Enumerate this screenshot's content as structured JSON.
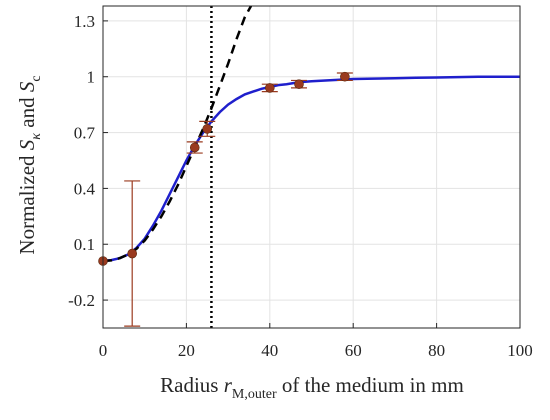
{
  "chart_data": {
    "type": "line",
    "title": "",
    "xlabel": {
      "main": "Radius ",
      "var": "r",
      "sub": "M,outer",
      "rest": " of the medium in mm"
    },
    "ylabel": {
      "main": "Normalized ",
      "var1": "S",
      "sub1": "κ",
      "mid": " and ",
      "var2": "S",
      "sub2": "c"
    },
    "xlim": [
      0,
      100
    ],
    "ylim": [
      -0.35,
      1.38
    ],
    "xticks": [
      0,
      20,
      40,
      60,
      80,
      100
    ],
    "yticks": [
      -0.2,
      0.1,
      0.4,
      0.7,
      1.0,
      1.3
    ],
    "ytick_labels": [
      "-0.2",
      "0.1",
      "0.4",
      "0.7",
      "1",
      "1.3"
    ],
    "grid": true,
    "vertical_line_x": 26,
    "series": [
      {
        "style": "solid",
        "color": "#1f1fcc",
        "x": [
          0,
          2,
          4,
          6,
          8,
          10,
          12,
          14,
          16,
          18,
          20,
          22,
          24,
          26,
          28,
          30,
          32,
          34,
          36,
          38,
          40,
          42,
          44,
          46,
          48,
          50,
          55,
          60,
          65,
          70,
          75,
          80,
          85,
          90,
          95,
          100
        ],
        "y": [
          0.01,
          0.015,
          0.025,
          0.045,
          0.08,
          0.13,
          0.2,
          0.28,
          0.37,
          0.46,
          0.55,
          0.63,
          0.7,
          0.76,
          0.81,
          0.85,
          0.88,
          0.905,
          0.92,
          0.935,
          0.945,
          0.955,
          0.96,
          0.967,
          0.972,
          0.976,
          0.982,
          0.988,
          0.99,
          0.992,
          0.994,
          0.996,
          0.998,
          1.0,
          1.0,
          1.0
        ]
      },
      {
        "style": "dashed",
        "color": "#000000",
        "x": [
          0,
          2,
          4,
          6,
          8,
          10,
          12,
          14,
          16,
          18,
          20,
          22,
          24,
          26,
          28,
          30,
          32,
          34,
          35.5
        ],
        "y": [
          0.01,
          0.013,
          0.025,
          0.045,
          0.075,
          0.12,
          0.18,
          0.25,
          0.33,
          0.42,
          0.52,
          0.62,
          0.72,
          0.83,
          0.95,
          1.07,
          1.2,
          1.32,
          1.38
        ]
      },
      {
        "style": "markers",
        "color": "#9a3a1f",
        "x": [
          0,
          7,
          22,
          25,
          40,
          47,
          58
        ],
        "y": [
          0.01,
          0.05,
          0.62,
          0.72,
          0.94,
          0.96,
          1.0
        ],
        "error_low": [
          0,
          0.39,
          0.03,
          0.04,
          0.02,
          0.02,
          0.02
        ],
        "error_high": [
          0,
          0.39,
          0.03,
          0.04,
          0.02,
          0.02,
          0.02
        ]
      }
    ]
  }
}
